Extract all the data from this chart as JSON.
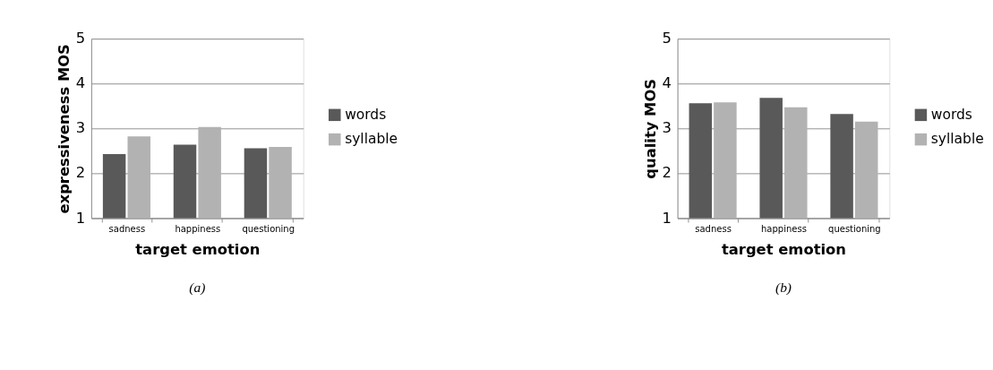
{
  "chart_data": [
    {
      "type": "bar",
      "xlabel": "target emotion",
      "ylabel": "expressiveness MOS",
      "categories": [
        "sadness",
        "happiness",
        "questioning"
      ],
      "series": [
        {
          "name": "words",
          "color": "#595959",
          "values": [
            2.43,
            2.64,
            2.56
          ]
        },
        {
          "name": "syllable",
          "color": "#b2b2b2",
          "values": [
            2.82,
            3.03,
            2.59
          ]
        }
      ],
      "ylim": [
        1,
        5
      ],
      "yticks": [
        1,
        2,
        3,
        4,
        5
      ],
      "grid": "y",
      "legend": "right",
      "annotations": [
        "(a)"
      ]
    },
    {
      "type": "bar",
      "xlabel": "target emotion",
      "ylabel": "quality MOS",
      "categories": [
        "sadness",
        "happiness",
        "questioning"
      ],
      "series": [
        {
          "name": "words",
          "color": "#595959",
          "values": [
            3.56,
            3.68,
            3.32
          ]
        },
        {
          "name": "syllable",
          "color": "#b2b2b2",
          "values": [
            3.58,
            3.47,
            3.15
          ]
        }
      ],
      "ylim": [
        1,
        5
      ],
      "yticks": [
        1,
        2,
        3,
        4,
        5
      ],
      "grid": "y",
      "legend": "right",
      "annotations": [
        "(b)"
      ]
    }
  ]
}
